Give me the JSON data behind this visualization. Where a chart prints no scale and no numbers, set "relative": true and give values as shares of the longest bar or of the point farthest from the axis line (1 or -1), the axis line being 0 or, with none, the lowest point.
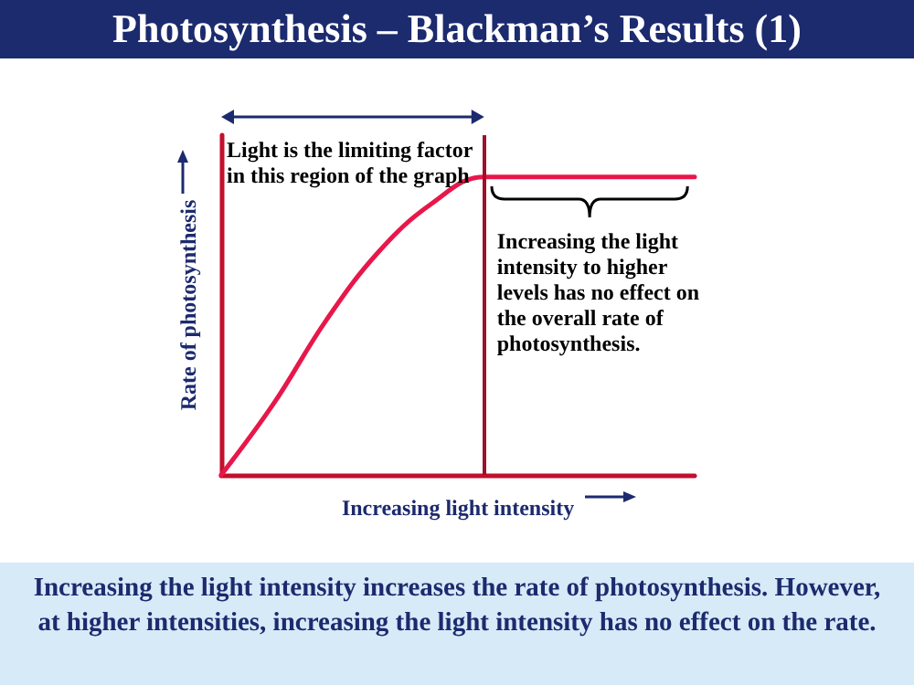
{
  "chart_data": {
    "type": "line",
    "title": "Photosynthesis – Blackman’s Results (1)",
    "xlabel": "Increasing light intensity",
    "ylabel": "Rate of photosynthesis",
    "relative": true,
    "categories": [
      null,
      null,
      null,
      null,
      null,
      null,
      null,
      null,
      null,
      null
    ],
    "series": [
      {
        "color": "#e8174a",
        "values": [
          0,
          0.24,
          0.52,
          0.75,
          0.91,
          1,
          1,
          1,
          1,
          1
        ]
      }
    ],
    "marker": "none",
    "line_style": "solid",
    "grid": false,
    "annotations": [
      "Light is the limiting factor in this region of the graph",
      "Increasing the light intensity to higher levels has no effect on the overall rate of photosynthesis.",
      "Increasing the light intensity increases the rate of photosynthesis. However, at higher intensities, increasing the light intensity has no effect on the rate."
    ]
  }
}
